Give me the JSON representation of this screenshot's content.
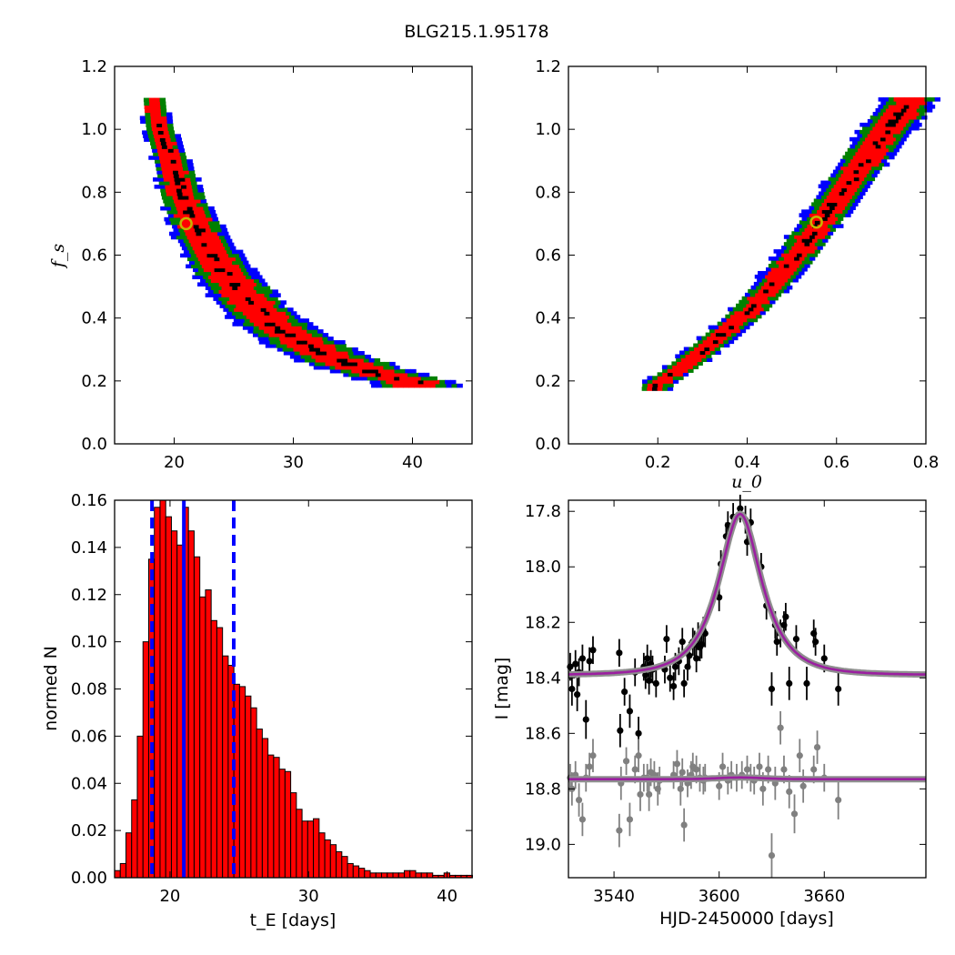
{
  "figure": {
    "title": "BLG215.1.95178"
  },
  "chart_data": [
    {
      "id": "tE-fs",
      "type": "heatmap",
      "xlabel": "",
      "ylabel": "f_s",
      "xlim": [
        15,
        45
      ],
      "ylim": [
        0.0,
        1.2
      ],
      "xticks": [
        20,
        30,
        40
      ],
      "yticks": [
        0.0,
        0.2,
        0.4,
        0.6,
        0.8,
        1.0,
        1.2
      ],
      "levels": [
        {
          "name": "blue",
          "color": "#0000ff"
        },
        {
          "name": "green",
          "color": "#008000"
        },
        {
          "name": "red",
          "color": "#ff0000"
        },
        {
          "name": "black",
          "color": "#000000"
        }
      ],
      "ridge": [
        [
          18.0,
          1.09
        ],
        [
          18.5,
          1.0
        ],
        [
          19.5,
          0.9
        ],
        [
          20.5,
          0.78
        ],
        [
          22.0,
          0.66
        ],
        [
          24.0,
          0.54
        ],
        [
          26.0,
          0.45
        ],
        [
          28.0,
          0.38
        ],
        [
          30.0,
          0.33
        ],
        [
          33.0,
          0.27
        ],
        [
          36.0,
          0.23
        ],
        [
          40.0,
          0.19
        ]
      ],
      "best_fit_marker": {
        "x": 21.0,
        "y": 0.7,
        "color": "#c8b400"
      }
    },
    {
      "id": "u0-fs",
      "type": "heatmap",
      "xlabel": "u_0",
      "ylabel": "",
      "xlim": [
        0.0,
        0.8
      ],
      "ylim": [
        0.0,
        1.2
      ],
      "xticks": [
        0.2,
        0.4,
        0.6,
        0.8
      ],
      "yticks": [
        0.0,
        0.2,
        0.4,
        0.6,
        0.8,
        1.0,
        1.2
      ],
      "ridge": [
        [
          0.19,
          0.18
        ],
        [
          0.25,
          0.24
        ],
        [
          0.32,
          0.32
        ],
        [
          0.4,
          0.42
        ],
        [
          0.48,
          0.55
        ],
        [
          0.56,
          0.7
        ],
        [
          0.63,
          0.84
        ],
        [
          0.7,
          0.98
        ],
        [
          0.76,
          1.09
        ]
      ],
      "best_fit_marker": {
        "x": 0.555,
        "y": 0.705,
        "color": "#c8b400"
      }
    },
    {
      "id": "tE-hist",
      "type": "bar",
      "xlabel": "t_E [days]",
      "ylabel": "normed N",
      "xlim": [
        16,
        41.8
      ],
      "ylim": [
        0.0,
        0.16
      ],
      "xticks": [
        20,
        30,
        40
      ],
      "yticks": [
        0.0,
        0.02,
        0.04,
        0.06,
        0.08,
        0.1,
        0.12,
        0.14,
        0.16
      ],
      "bin_start": 16.0,
      "bin_width": 0.41,
      "values": [
        0.003,
        0.006,
        0.019,
        0.033,
        0.06,
        0.1,
        0.135,
        0.157,
        0.16,
        0.153,
        0.147,
        0.141,
        0.157,
        0.147,
        0.136,
        0.119,
        0.122,
        0.109,
        0.106,
        0.094,
        0.09,
        0.082,
        0.081,
        0.077,
        0.072,
        0.063,
        0.059,
        0.052,
        0.051,
        0.046,
        0.045,
        0.036,
        0.029,
        0.024,
        0.024,
        0.025,
        0.019,
        0.016,
        0.014,
        0.011,
        0.009,
        0.006,
        0.005,
        0.004,
        0.003,
        0.002,
        0.002,
        0.002,
        0.002,
        0.002,
        0.002,
        0.003,
        0.003,
        0.002,
        0.002,
        0.002,
        0.001,
        0.001,
        0.002,
        0.001,
        0.001,
        0.001,
        0.001
      ],
      "bar_color": "#ff0000",
      "median_line": 21.0,
      "interval_lines": [
        18.7,
        24.6
      ],
      "line_color": "#0000ff"
    },
    {
      "id": "lightcurve",
      "type": "scatter",
      "xlabel": "HJD-2450000 [days]",
      "ylabel": "I [mag]",
      "xlim": [
        3514,
        3718
      ],
      "ylim": [
        19.12,
        17.76
      ],
      "xticks": [
        3540,
        3600,
        3660
      ],
      "yticks": [
        17.8,
        18.0,
        18.2,
        18.4,
        18.6,
        18.8,
        19.0
      ],
      "model": {
        "t0": 3612,
        "tE": 21,
        "u0": 0.555,
        "fs": 0.705,
        "base": 18.39,
        "color": "#9b1fa0"
      },
      "series": [
        {
          "color": "#000000",
          "points": [
            [
              3515,
              18.36,
              0.05
            ],
            [
              3516,
              18.44,
              0.06
            ],
            [
              3518,
              18.35,
              0.05
            ],
            [
              3519,
              18.46,
              0.06
            ],
            [
              3520,
              18.38,
              0.05
            ],
            [
              3522,
              18.33,
              0.05
            ],
            [
              3524,
              18.55,
              0.07
            ],
            [
              3526,
              18.34,
              0.05
            ],
            [
              3528,
              18.3,
              0.05
            ],
            [
              3543,
              18.31,
              0.05
            ],
            [
              3543.5,
              18.59,
              0.06
            ],
            [
              3546,
              18.45,
              0.05
            ],
            [
              3549,
              18.52,
              0.06
            ],
            [
              3552,
              18.38,
              0.05
            ],
            [
              3554,
              18.6,
              0.06
            ],
            [
              3557,
              18.36,
              0.05
            ],
            [
              3558,
              18.39,
              0.05
            ],
            [
              3559,
              18.33,
              0.05
            ],
            [
              3560,
              18.41,
              0.05
            ],
            [
              3561,
              18.35,
              0.05
            ],
            [
              3562,
              18.37,
              0.05
            ],
            [
              3564,
              18.42,
              0.05
            ],
            [
              3569,
              18.37,
              0.05
            ],
            [
              3570,
              18.26,
              0.05
            ],
            [
              3572,
              18.4,
              0.05
            ],
            [
              3574,
              18.43,
              0.05
            ],
            [
              3575,
              18.36,
              0.05
            ],
            [
              3577,
              18.34,
              0.05
            ],
            [
              3579,
              18.27,
              0.05
            ],
            [
              3580,
              18.42,
              0.05
            ],
            [
              3582,
              18.36,
              0.05
            ],
            [
              3583,
              18.32,
              0.05
            ],
            [
              3585,
              18.27,
              0.05
            ],
            [
              3586,
              18.28,
              0.05
            ],
            [
              3587,
              18.33,
              0.05
            ],
            [
              3588,
              18.25,
              0.05
            ],
            [
              3589,
              18.29,
              0.05
            ],
            [
              3590,
              18.28,
              0.05
            ],
            [
              3591,
              18.23,
              0.05
            ],
            [
              3592,
              18.24,
              0.05
            ],
            [
              3600,
              18.11,
              0.05
            ],
            [
              3601,
              17.99,
              0.05
            ],
            [
              3604,
              17.89,
              0.05
            ],
            [
              3605,
              17.85,
              0.05
            ],
            [
              3608,
              17.82,
              0.05
            ],
            [
              3612,
              17.79,
              0.05
            ],
            [
              3615,
              17.83,
              0.05
            ],
            [
              3616,
              17.91,
              0.05
            ],
            [
              3618,
              17.84,
              0.05
            ],
            [
              3624,
              18.0,
              0.05
            ],
            [
              3627,
              18.14,
              0.05
            ],
            [
              3630,
              18.44,
              0.06
            ],
            [
              3632,
              18.21,
              0.05
            ],
            [
              3633,
              18.27,
              0.05
            ],
            [
              3635,
              18.24,
              0.05
            ],
            [
              3637,
              18.21,
              0.05
            ],
            [
              3638,
              18.18,
              0.05
            ],
            [
              3640,
              18.42,
              0.06
            ],
            [
              3644,
              18.26,
              0.05
            ],
            [
              3650,
              18.42,
              0.06
            ],
            [
              3654,
              18.24,
              0.05
            ],
            [
              3655,
              18.27,
              0.05
            ],
            [
              3660,
              18.33,
              0.05
            ],
            [
              3668,
              18.44,
              0.06
            ]
          ]
        },
        {
          "color": "#808080",
          "points": [
            [
              3515,
              18.76,
              0.05
            ],
            [
              3516,
              18.8,
              0.06
            ],
            [
              3518,
              18.75,
              0.05
            ],
            [
              3520,
              18.84,
              0.06
            ],
            [
              3522,
              18.91,
              0.06
            ],
            [
              3524,
              18.76,
              0.05
            ],
            [
              3526,
              18.72,
              0.05
            ],
            [
              3528,
              18.68,
              0.06
            ],
            [
              3543,
              18.95,
              0.06
            ],
            [
              3544,
              18.78,
              0.06
            ],
            [
              3547,
              18.7,
              0.05
            ],
            [
              3549,
              18.91,
              0.06
            ],
            [
              3552,
              18.73,
              0.05
            ],
            [
              3554,
              18.68,
              0.06
            ],
            [
              3555,
              18.82,
              0.06
            ],
            [
              3557,
              18.76,
              0.05
            ],
            [
              3559,
              18.76,
              0.05
            ],
            [
              3560,
              18.82,
              0.06
            ],
            [
              3561,
              18.74,
              0.05
            ],
            [
              3563,
              18.75,
              0.05
            ],
            [
              3565,
              18.8,
              0.06
            ],
            [
              3566,
              18.77,
              0.05
            ],
            [
              3574,
              18.75,
              0.05
            ],
            [
              3576,
              18.71,
              0.05
            ],
            [
              3578,
              18.8,
              0.06
            ],
            [
              3579,
              18.74,
              0.05
            ],
            [
              3580,
              18.93,
              0.06
            ],
            [
              3582,
              18.78,
              0.05
            ],
            [
              3584,
              18.75,
              0.05
            ],
            [
              3585,
              18.72,
              0.05
            ],
            [
              3587,
              18.73,
              0.05
            ],
            [
              3589,
              18.76,
              0.05
            ],
            [
              3591,
              18.77,
              0.05
            ],
            [
              3592,
              18.76,
              0.05
            ],
            [
              3600,
              18.79,
              0.05
            ],
            [
              3602,
              18.72,
              0.05
            ],
            [
              3605,
              18.77,
              0.05
            ],
            [
              3607,
              18.75,
              0.05
            ],
            [
              3610,
              18.76,
              0.05
            ],
            [
              3613,
              18.75,
              0.05
            ],
            [
              3616,
              18.73,
              0.05
            ],
            [
              3618,
              18.76,
              0.05
            ],
            [
              3620,
              18.77,
              0.05
            ],
            [
              3623,
              18.72,
              0.05
            ],
            [
              3625,
              18.8,
              0.06
            ],
            [
              3628,
              18.73,
              0.05
            ],
            [
              3630,
              19.04,
              0.08
            ],
            [
              3632,
              18.78,
              0.06
            ],
            [
              3635,
              18.58,
              0.06
            ],
            [
              3637,
              18.73,
              0.05
            ],
            [
              3640,
              18.81,
              0.06
            ],
            [
              3643,
              18.89,
              0.07
            ],
            [
              3646,
              18.68,
              0.06
            ],
            [
              3648,
              18.79,
              0.06
            ],
            [
              3654,
              18.73,
              0.05
            ],
            [
              3656,
              18.65,
              0.06
            ],
            [
              3660,
              18.76,
              0.05
            ],
            [
              3668,
              18.84,
              0.07
            ]
          ]
        }
      ]
    }
  ]
}
